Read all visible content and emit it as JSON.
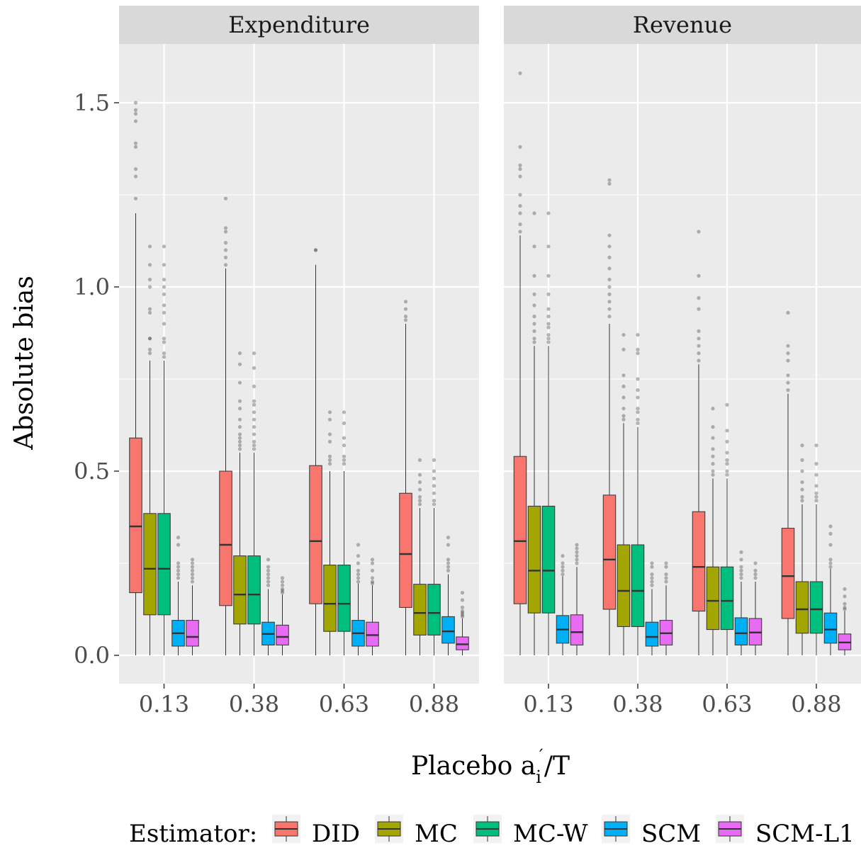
{
  "chart_data": {
    "type": "boxplot",
    "xlabel": "Placebo a_i'/T",
    "xlabel_parts": {
      "pre": "Placebo a",
      "sup": "´",
      "sub": "i",
      "post": "/T"
    },
    "ylabel": "Absolute bias",
    "ylim": [
      -0.07,
      1.68
    ],
    "y_ticks": [
      0.0,
      0.5,
      1.0,
      1.5
    ],
    "y_tick_labels": [
      "0.0",
      "0.5",
      "1.0",
      "1.5"
    ],
    "categories": [
      "0.13",
      "0.38",
      "0.63",
      "0.88"
    ],
    "legend": {
      "title": "Estimator:",
      "position": "bottom"
    },
    "series": [
      {
        "name": "DID",
        "color": "#F8766D"
      },
      {
        "name": "MC",
        "color": "#A3A500"
      },
      {
        "name": "MC-W",
        "color": "#00BF7D"
      },
      {
        "name": "SCM",
        "color": "#00B0F6"
      },
      {
        "name": "SCM-L1",
        "color": "#E76BF3"
      }
    ],
    "panels": [
      {
        "title": "Expenditure",
        "boxes": [
          [
            {
              "min": 0.0,
              "q1": 0.17,
              "median": 0.35,
              "q3": 0.59,
              "max": 1.2,
              "outliers": [
                1.24,
                1.3,
                1.32,
                1.38,
                1.39,
                1.45,
                1.47,
                1.48,
                1.5
              ]
            },
            {
              "min": 0.0,
              "q1": 0.11,
              "median": 0.235,
              "q3": 0.385,
              "max": 0.8,
              "outliers": [
                0.82,
                0.83,
                0.86,
                0.86,
                0.93,
                0.94,
                1.0,
                1.02,
                1.06,
                1.11
              ]
            },
            {
              "min": 0.0,
              "q1": 0.11,
              "median": 0.235,
              "q3": 0.385,
              "max": 0.8,
              "outliers": [
                0.81,
                0.82,
                0.85,
                0.86,
                0.9,
                0.93,
                0.95,
                0.98,
                1.0,
                1.02,
                1.06,
                1.11
              ]
            },
            {
              "min": 0.0,
              "q1": 0.025,
              "median": 0.06,
              "q3": 0.095,
              "max": 0.2,
              "outliers": [
                0.21,
                0.22,
                0.23,
                0.24,
                0.25,
                0.3,
                0.32
              ]
            },
            {
              "min": 0.0,
              "q1": 0.025,
              "median": 0.05,
              "q3": 0.095,
              "max": 0.19,
              "outliers": [
                0.2,
                0.21,
                0.22,
                0.23,
                0.24,
                0.25,
                0.26
              ]
            }
          ],
          [
            {
              "min": 0.0,
              "q1": 0.135,
              "median": 0.3,
              "q3": 0.5,
              "max": 1.05,
              "outliers": [
                1.06,
                1.08,
                1.1,
                1.12,
                1.15,
                1.16,
                1.24
              ]
            },
            {
              "min": 0.0,
              "q1": 0.085,
              "median": 0.165,
              "q3": 0.27,
              "max": 0.55,
              "outliers": [
                0.56,
                0.57,
                0.58,
                0.59,
                0.6,
                0.62,
                0.64,
                0.67,
                0.69,
                0.74,
                0.79,
                0.82
              ]
            },
            {
              "min": 0.0,
              "q1": 0.085,
              "median": 0.165,
              "q3": 0.27,
              "max": 0.55,
              "outliers": [
                0.56,
                0.57,
                0.58,
                0.6,
                0.62,
                0.64,
                0.66,
                0.68,
                0.69,
                0.73,
                0.78,
                0.82
              ]
            },
            {
              "min": 0.0,
              "q1": 0.028,
              "median": 0.058,
              "q3": 0.09,
              "max": 0.18,
              "outliers": [
                0.19,
                0.2,
                0.21,
                0.22,
                0.23,
                0.24,
                0.26
              ]
            },
            {
              "min": 0.0,
              "q1": 0.028,
              "median": 0.05,
              "q3": 0.082,
              "max": 0.165,
              "outliers": [
                0.17,
                0.175,
                0.18,
                0.19,
                0.2,
                0.21
              ]
            }
          ],
          [
            {
              "min": 0.0,
              "q1": 0.14,
              "median": 0.31,
              "q3": 0.515,
              "max": 1.06,
              "outliers": [
                1.1,
                1.1
              ]
            },
            {
              "min": 0.0,
              "q1": 0.065,
              "median": 0.14,
              "q3": 0.245,
              "max": 0.5,
              "outliers": [
                0.52,
                0.53,
                0.54,
                0.58,
                0.6,
                0.64,
                0.66
              ]
            },
            {
              "min": 0.0,
              "q1": 0.065,
              "median": 0.14,
              "q3": 0.245,
              "max": 0.5,
              "outliers": [
                0.52,
                0.53,
                0.54,
                0.57,
                0.59,
                0.63,
                0.66
              ]
            },
            {
              "min": 0.0,
              "q1": 0.025,
              "median": 0.06,
              "q3": 0.095,
              "max": 0.195,
              "outliers": [
                0.2,
                0.21,
                0.22,
                0.23,
                0.25,
                0.27,
                0.3
              ]
            },
            {
              "min": 0.0,
              "q1": 0.025,
              "median": 0.055,
              "q3": 0.09,
              "max": 0.19,
              "outliers": [
                0.195,
                0.2,
                0.21,
                0.23,
                0.25,
                0.26
              ]
            }
          ],
          [
            {
              "min": 0.0,
              "q1": 0.13,
              "median": 0.275,
              "q3": 0.44,
              "max": 0.9,
              "outliers": [
                0.91,
                0.92,
                0.94,
                0.96
              ]
            },
            {
              "min": 0.0,
              "q1": 0.055,
              "median": 0.115,
              "q3": 0.193,
              "max": 0.4,
              "outliers": [
                0.41,
                0.42,
                0.43,
                0.45,
                0.47,
                0.49,
                0.53
              ]
            },
            {
              "min": 0.0,
              "q1": 0.055,
              "median": 0.115,
              "q3": 0.193,
              "max": 0.4,
              "outliers": [
                0.41,
                0.42,
                0.44,
                0.46,
                0.48,
                0.5,
                0.53
              ]
            },
            {
              "min": 0.0,
              "q1": 0.033,
              "median": 0.065,
              "q3": 0.105,
              "max": 0.22,
              "outliers": [
                0.23,
                0.24,
                0.25,
                0.26,
                0.3,
                0.32
              ]
            },
            {
              "min": 0.0,
              "q1": 0.015,
              "median": 0.03,
              "q3": 0.05,
              "max": 0.1,
              "outliers": [
                0.105,
                0.11,
                0.115,
                0.12,
                0.13,
                0.15,
                0.17
              ]
            }
          ]
        ]
      },
      {
        "title": "Revenue",
        "boxes": [
          [
            {
              "min": 0.0,
              "q1": 0.14,
              "median": 0.31,
              "q3": 0.54,
              "max": 1.14,
              "outliers": [
                1.15,
                1.17,
                1.2,
                1.22,
                1.25,
                1.3,
                1.32,
                1.33,
                1.38,
                1.58
              ]
            },
            {
              "min": 0.0,
              "q1": 0.115,
              "median": 0.23,
              "q3": 0.405,
              "max": 0.84,
              "outliers": [
                0.85,
                0.86,
                0.88,
                0.9,
                0.92,
                0.95,
                0.98,
                1.03,
                1.11,
                1.2
              ]
            },
            {
              "min": 0.0,
              "q1": 0.115,
              "median": 0.23,
              "q3": 0.405,
              "max": 0.84,
              "outliers": [
                0.85,
                0.86,
                0.87,
                0.89,
                0.9,
                0.92,
                0.94,
                0.98,
                1.03,
                1.11,
                1.2
              ]
            },
            {
              "min": 0.0,
              "q1": 0.033,
              "median": 0.07,
              "q3": 0.108,
              "max": 0.215,
              "outliers": [
                0.22,
                0.23,
                0.24,
                0.25,
                0.27
              ]
            },
            {
              "min": 0.0,
              "q1": 0.028,
              "median": 0.063,
              "q3": 0.11,
              "max": 0.24,
              "outliers": [
                0.25,
                0.26,
                0.27,
                0.28,
                0.29,
                0.3
              ]
            }
          ],
          [
            {
              "min": 0.0,
              "q1": 0.125,
              "median": 0.26,
              "q3": 0.435,
              "max": 0.9,
              "outliers": [
                0.92,
                0.94,
                0.96,
                0.98,
                1.0,
                1.02,
                1.05,
                1.08,
                1.11,
                1.14,
                1.28,
                1.29
              ]
            },
            {
              "min": 0.0,
              "q1": 0.078,
              "median": 0.175,
              "q3": 0.3,
              "max": 0.63,
              "outliers": [
                0.64,
                0.65,
                0.67,
                0.7,
                0.73,
                0.76,
                0.83,
                0.87
              ]
            },
            {
              "min": 0.0,
              "q1": 0.078,
              "median": 0.175,
              "q3": 0.3,
              "max": 0.62,
              "outliers": [
                0.63,
                0.64,
                0.66,
                0.67,
                0.7,
                0.72,
                0.75,
                0.82,
                0.83,
                0.87
              ]
            },
            {
              "min": 0.0,
              "q1": 0.025,
              "median": 0.05,
              "q3": 0.09,
              "max": 0.18,
              "outliers": [
                0.19,
                0.2,
                0.21,
                0.22,
                0.24,
                0.25
              ]
            },
            {
              "min": 0.0,
              "q1": 0.028,
              "median": 0.06,
              "q3": 0.095,
              "max": 0.19,
              "outliers": [
                0.2,
                0.21,
                0.22,
                0.24,
                0.25
              ]
            }
          ],
          [
            {
              "min": 0.0,
              "q1": 0.12,
              "median": 0.24,
              "q3": 0.39,
              "max": 0.79,
              "outliers": [
                0.8,
                0.82,
                0.84,
                0.86,
                0.88,
                0.94,
                0.97,
                1.03,
                1.15
              ]
            },
            {
              "min": 0.0,
              "q1": 0.07,
              "median": 0.148,
              "q3": 0.24,
              "max": 0.48,
              "outliers": [
                0.49,
                0.5,
                0.52,
                0.54,
                0.56,
                0.59,
                0.62,
                0.67
              ]
            },
            {
              "min": 0.0,
              "q1": 0.07,
              "median": 0.148,
              "q3": 0.24,
              "max": 0.48,
              "outliers": [
                0.49,
                0.5,
                0.52,
                0.53,
                0.55,
                0.58,
                0.61,
                0.68
              ]
            },
            {
              "min": 0.0,
              "q1": 0.028,
              "median": 0.06,
              "q3": 0.102,
              "max": 0.2,
              "outliers": [
                0.21,
                0.22,
                0.23,
                0.24,
                0.26,
                0.28
              ]
            },
            {
              "min": 0.0,
              "q1": 0.028,
              "median": 0.062,
              "q3": 0.1,
              "max": 0.2,
              "outliers": [
                0.21,
                0.22,
                0.23,
                0.25
              ]
            }
          ],
          [
            {
              "min": 0.0,
              "q1": 0.1,
              "median": 0.215,
              "q3": 0.345,
              "max": 0.71,
              "outliers": [
                0.72,
                0.74,
                0.76,
                0.8,
                0.82,
                0.84,
                0.93
              ]
            },
            {
              "min": 0.0,
              "q1": 0.06,
              "median": 0.125,
              "q3": 0.2,
              "max": 0.41,
              "outliers": [
                0.42,
                0.43,
                0.45,
                0.47,
                0.5,
                0.53,
                0.57
              ]
            },
            {
              "min": 0.0,
              "q1": 0.06,
              "median": 0.125,
              "q3": 0.2,
              "max": 0.41,
              "outliers": [
                0.42,
                0.43,
                0.44,
                0.46,
                0.49,
                0.52,
                0.57
              ]
            },
            {
              "min": 0.0,
              "q1": 0.033,
              "median": 0.07,
              "q3": 0.115,
              "max": 0.235,
              "outliers": [
                0.24,
                0.25,
                0.26,
                0.3,
                0.33,
                0.35
              ]
            },
            {
              "min": 0.0,
              "q1": 0.015,
              "median": 0.035,
              "q3": 0.058,
              "max": 0.12,
              "outliers": [
                0.125,
                0.13,
                0.14,
                0.16,
                0.18
              ]
            }
          ]
        ]
      }
    ]
  }
}
